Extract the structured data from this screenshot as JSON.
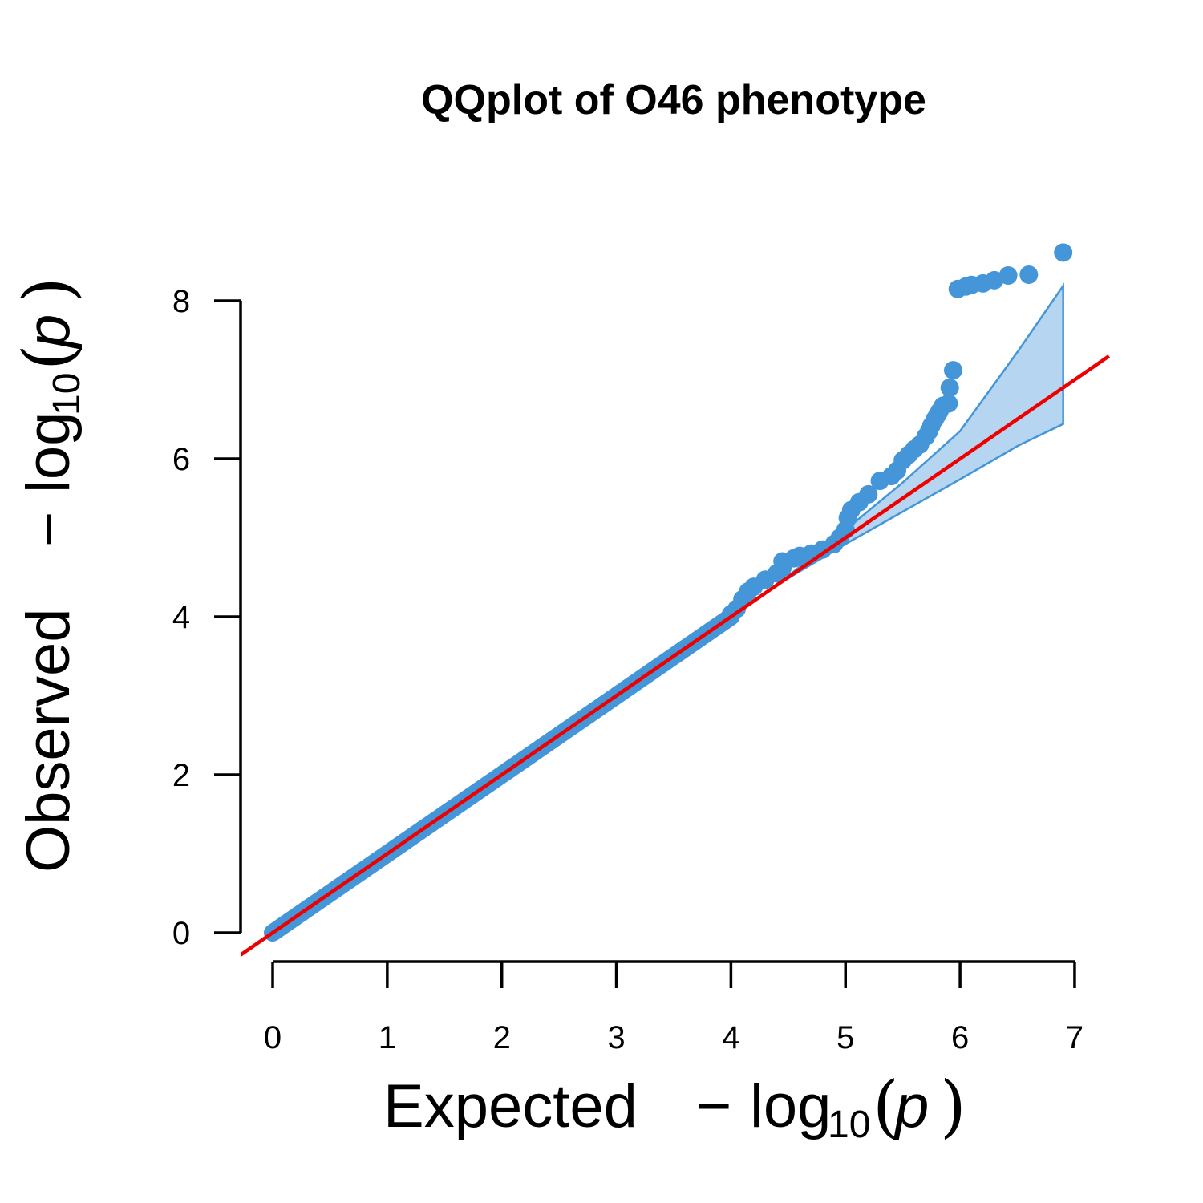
{
  "chart_data": {
    "type": "scatter",
    "title": "QQplot of O46 phenotype",
    "xlabel": {
      "word": "Expected",
      "minus": "−",
      "log": "log",
      "sub": "10",
      "open_paren": "(",
      "var": "p",
      "close_paren": ")"
    },
    "ylabel": {
      "word": "Observed",
      "minus": "−",
      "log": "log",
      "sub": "10",
      "open_paren": "(",
      "var": "p",
      "close_paren": ")"
    },
    "xlim": [
      0,
      7
    ],
    "ylim": [
      0,
      8
    ],
    "x_ticks": [
      "0",
      "1",
      "2",
      "3",
      "4",
      "5",
      "6",
      "7"
    ],
    "y_ticks": [
      "0",
      "2",
      "4",
      "6",
      "8"
    ],
    "grid": false,
    "point_color": "#4496d8",
    "band_fill": "#b5d5f0",
    "band_edge": "#4496d8",
    "reference_line_color": "#ee0000",
    "reference_line": {
      "slope": 1,
      "intercept": 0
    },
    "confidence_band": {
      "x": [
        4.4,
        5.0,
        5.5,
        6.0,
        6.5,
        6.9
      ],
      "lower": [
        4.4,
        4.92,
        5.33,
        5.74,
        6.16,
        6.44
      ],
      "upper": [
        4.4,
        5.1,
        5.7,
        6.35,
        7.35,
        8.19
      ]
    },
    "main_diagonal": {
      "x_start": 0.0,
      "x_end": 4.0
    },
    "points": [
      [
        4.0,
        4.03
      ],
      [
        4.05,
        4.1
      ],
      [
        4.1,
        4.22
      ],
      [
        4.15,
        4.32
      ],
      [
        4.2,
        4.38
      ],
      [
        4.3,
        4.47
      ],
      [
        4.4,
        4.55
      ],
      [
        4.45,
        4.62
      ],
      [
        4.45,
        4.7
      ],
      [
        4.55,
        4.74
      ],
      [
        4.6,
        4.77
      ],
      [
        4.7,
        4.8
      ],
      [
        4.8,
        4.85
      ],
      [
        4.9,
        4.92
      ],
      [
        4.95,
        5.0
      ],
      [
        5.0,
        5.1
      ],
      [
        5.02,
        5.25
      ],
      [
        5.05,
        5.35
      ],
      [
        5.12,
        5.45
      ],
      [
        5.2,
        5.55
      ],
      [
        5.3,
        5.72
      ],
      [
        5.4,
        5.78
      ],
      [
        5.45,
        5.85
      ],
      [
        5.5,
        5.98
      ],
      [
        5.55,
        6.05
      ],
      [
        5.6,
        6.12
      ],
      [
        5.65,
        6.18
      ],
      [
        5.7,
        6.28
      ],
      [
        5.73,
        6.35
      ],
      [
        5.75,
        6.42
      ],
      [
        5.78,
        6.5
      ],
      [
        5.8,
        6.55
      ],
      [
        5.82,
        6.6
      ],
      [
        5.85,
        6.67
      ],
      [
        5.9,
        6.7
      ],
      [
        5.91,
        6.9
      ],
      [
        5.94,
        7.12
      ],
      [
        5.98,
        8.15
      ],
      [
        6.05,
        8.18
      ],
      [
        6.1,
        8.2
      ],
      [
        6.2,
        8.22
      ],
      [
        6.3,
        8.26
      ],
      [
        6.42,
        8.32
      ],
      [
        6.6,
        8.33
      ],
      [
        6.9,
        8.61
      ]
    ]
  }
}
